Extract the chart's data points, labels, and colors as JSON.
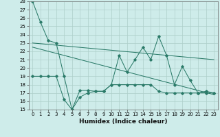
{
  "xlabel": "Humidex (Indice chaleur)",
  "x": [
    0,
    1,
    2,
    3,
    4,
    5,
    6,
    7,
    8,
    9,
    10,
    11,
    12,
    13,
    14,
    15,
    16,
    17,
    18,
    19,
    20,
    21,
    22,
    23
  ],
  "line1": [
    28,
    25.5,
    23.3,
    23.0,
    19.0,
    15.0,
    17.3,
    17.3,
    17.2,
    17.2,
    18.0,
    21.5,
    19.5,
    21.0,
    22.5,
    21.0,
    23.8,
    21.5,
    18.0,
    20.2,
    18.5,
    17.0,
    17.2,
    17.0
  ],
  "line2": [
    19.0,
    19.0,
    19.0,
    19.0,
    16.2,
    15.0,
    16.5,
    17.0,
    17.2,
    17.2,
    18.0,
    18.0,
    18.0,
    18.0,
    18.0,
    18.0,
    17.2,
    17.0,
    17.0,
    17.0,
    17.0,
    17.0,
    17.0,
    17.0
  ],
  "trend1_x": [
    0,
    23
  ],
  "trend1_y": [
    23.0,
    21.0
  ],
  "trend2_x": [
    0,
    23
  ],
  "trend2_y": [
    22.5,
    16.8
  ],
  "ylim": [
    15,
    28
  ],
  "xlim": [
    -0.5,
    23.5
  ],
  "yticks": [
    15,
    16,
    17,
    18,
    19,
    20,
    21,
    22,
    23,
    24,
    25,
    26,
    27,
    28
  ],
  "xticks": [
    0,
    1,
    2,
    3,
    4,
    5,
    6,
    7,
    8,
    9,
    10,
    11,
    12,
    13,
    14,
    15,
    16,
    17,
    18,
    19,
    20,
    21,
    22,
    23
  ],
  "line_color": "#2a7a68",
  "bg_color": "#ceecea",
  "grid_color": "#aecfca",
  "tick_fontsize": 5.0,
  "label_fontsize": 6.5
}
